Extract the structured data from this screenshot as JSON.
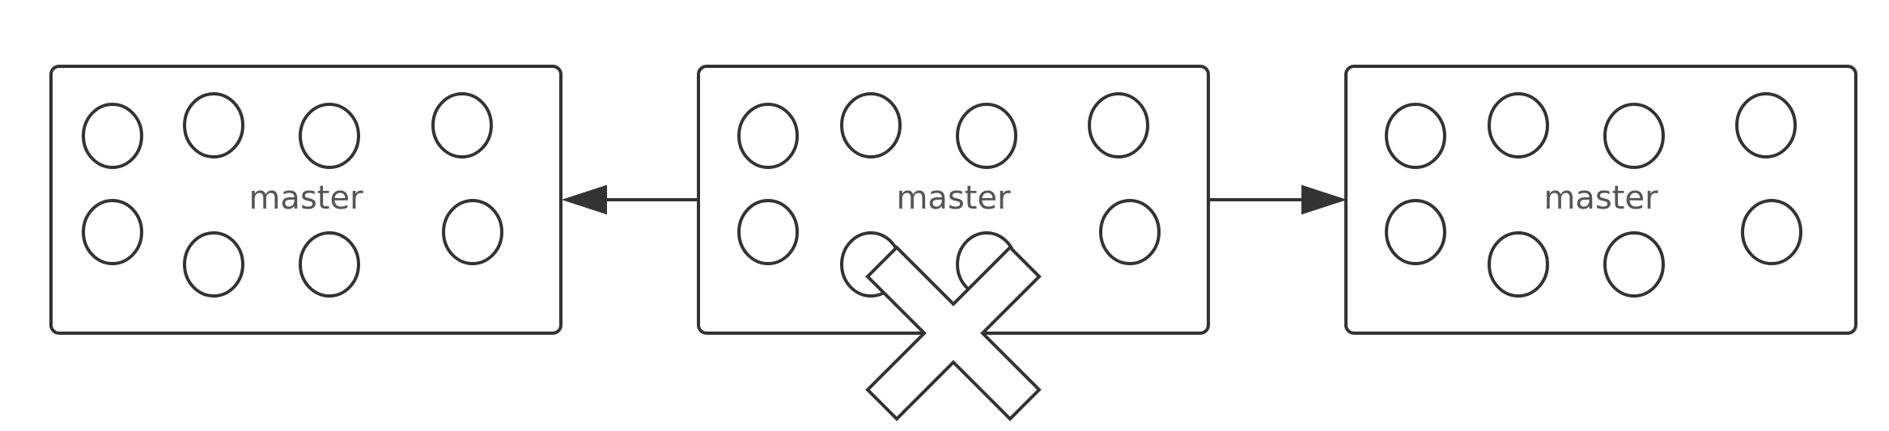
{
  "diagram": {
    "boxes": [
      {
        "id": "left",
        "label": "master",
        "nodes": 8
      },
      {
        "id": "center",
        "label": "master",
        "nodes": 8,
        "failed": true
      },
      {
        "id": "right",
        "label": "master",
        "nodes": 8
      }
    ],
    "arrows": [
      {
        "from": "center",
        "to": "left"
      },
      {
        "from": "center",
        "to": "right"
      }
    ],
    "failure_icon": "x-cross-icon",
    "colors": {
      "stroke": "#333333",
      "label": "#555555",
      "fill": "#ffffff"
    }
  }
}
